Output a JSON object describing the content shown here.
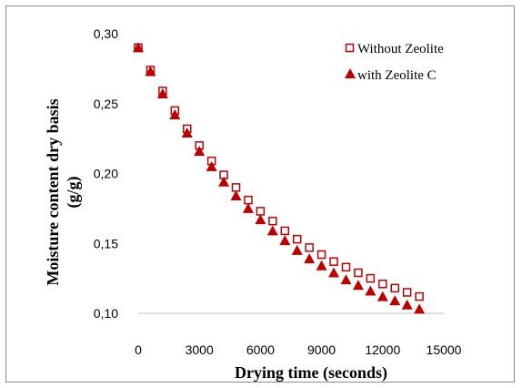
{
  "chart_data": {
    "type": "scatter",
    "xlabel": "Drying time (seconds)",
    "ylabel_line1": "Moisture content dry basis",
    "ylabel_line2": "(g/g)",
    "xlim": [
      0,
      15000
    ],
    "ylim": [
      0.1,
      0.3
    ],
    "x_ticks": [
      "0",
      "3000",
      "6000",
      "9000",
      "12000",
      "15000"
    ],
    "y_ticks": [
      "0,10",
      "0,15",
      "0,20",
      "0,25",
      "0,30"
    ],
    "x_tick_values": [
      0,
      3000,
      6000,
      9000,
      12000,
      15000
    ],
    "y_tick_values": [
      0.1,
      0.15,
      0.2,
      0.25,
      0.3
    ],
    "grid": false,
    "legend_position": "top-right",
    "series": [
      {
        "name": "Without Zeolite",
        "marker": "hollow-square",
        "color": "#c00000",
        "points": [
          [
            0,
            0.29
          ],
          [
            600,
            0.274
          ],
          [
            1200,
            0.259
          ],
          [
            1800,
            0.245
          ],
          [
            2400,
            0.232
          ],
          [
            3000,
            0.22
          ],
          [
            3600,
            0.209
          ],
          [
            4200,
            0.199
          ],
          [
            4800,
            0.19
          ],
          [
            5400,
            0.181
          ],
          [
            6000,
            0.173
          ],
          [
            6600,
            0.166
          ],
          [
            7200,
            0.159
          ],
          [
            7800,
            0.153
          ],
          [
            8400,
            0.147
          ],
          [
            9000,
            0.142
          ],
          [
            9600,
            0.137
          ],
          [
            10200,
            0.133
          ],
          [
            10800,
            0.129
          ],
          [
            11400,
            0.125
          ],
          [
            12000,
            0.121
          ],
          [
            12600,
            0.118
          ],
          [
            13200,
            0.115
          ],
          [
            13800,
            0.112
          ]
        ]
      },
      {
        "name": "with Zeolite C",
        "marker": "filled-triangle",
        "color": "#c00000",
        "points": [
          [
            0,
            0.29
          ],
          [
            600,
            0.273
          ],
          [
            1200,
            0.257
          ],
          [
            1800,
            0.242
          ],
          [
            2400,
            0.229
          ],
          [
            3000,
            0.216
          ],
          [
            3600,
            0.205
          ],
          [
            4200,
            0.194
          ],
          [
            4800,
            0.184
          ],
          [
            5400,
            0.175
          ],
          [
            6000,
            0.167
          ],
          [
            6600,
            0.159
          ],
          [
            7200,
            0.152
          ],
          [
            7800,
            0.145
          ],
          [
            8400,
            0.139
          ],
          [
            9000,
            0.134
          ],
          [
            9600,
            0.129
          ],
          [
            10200,
            0.124
          ],
          [
            10800,
            0.12
          ],
          [
            11400,
            0.116
          ],
          [
            12000,
            0.112
          ],
          [
            12600,
            0.109
          ],
          [
            13200,
            0.106
          ],
          [
            13800,
            0.103
          ]
        ]
      }
    ]
  }
}
